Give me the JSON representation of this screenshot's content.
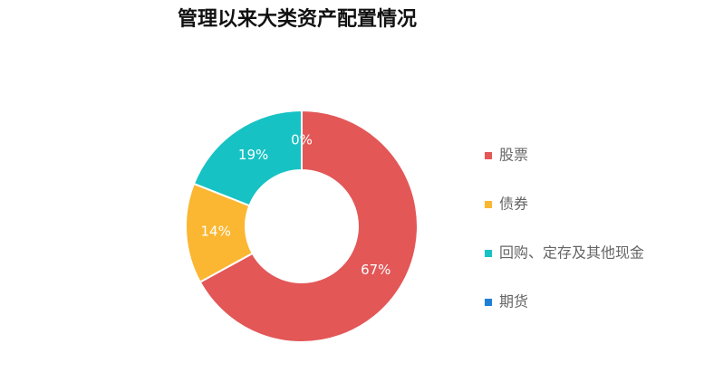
{
  "chart_data": {
    "type": "donut",
    "title": "管理以来大类资产配置情况",
    "categories": [
      "股票",
      "债券",
      "回购、定存及其他现金",
      "期货"
    ],
    "values": [
      67,
      14,
      19,
      0
    ],
    "value_labels": [
      "67%",
      "14%",
      "19%",
      "0%"
    ],
    "colors": [
      "#e35757",
      "#fbb731",
      "#17c2c4",
      "#1f7fd6"
    ],
    "legend": "right"
  }
}
